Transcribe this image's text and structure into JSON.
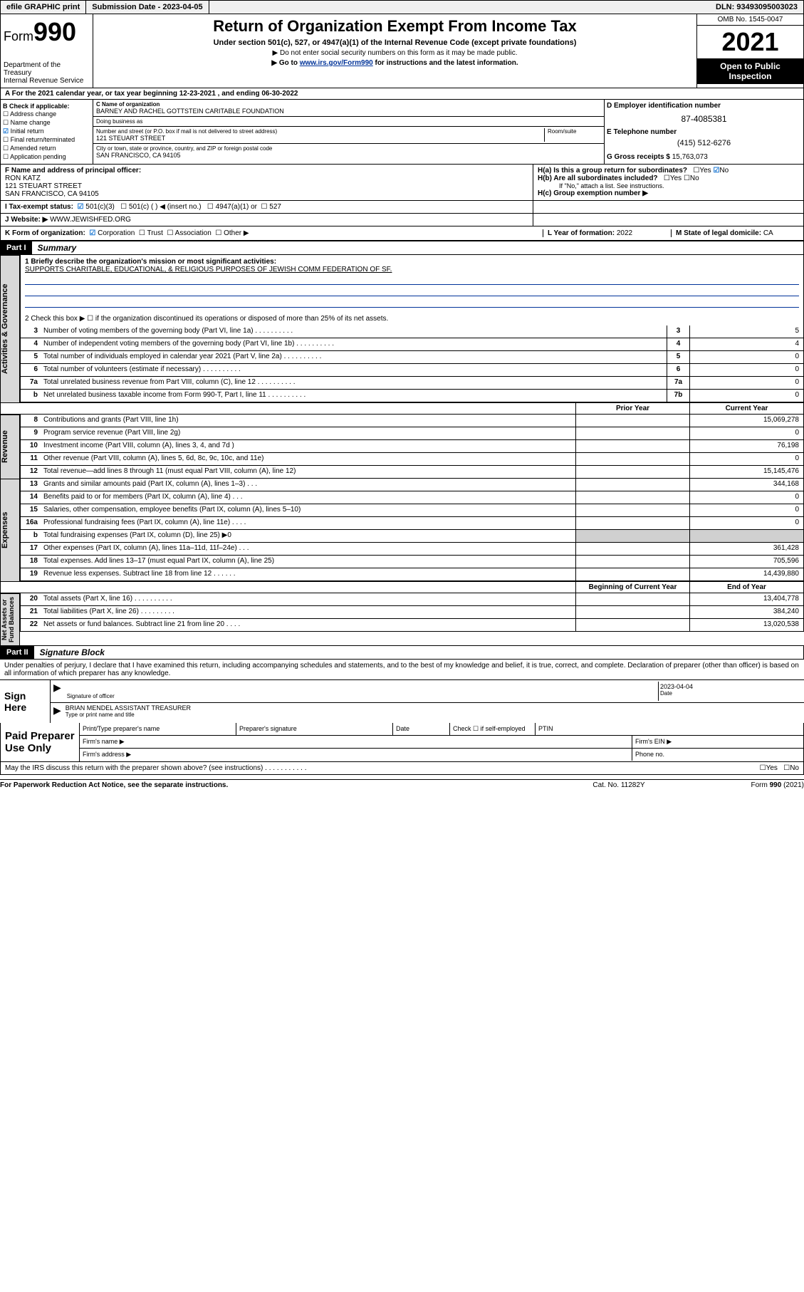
{
  "topbar": {
    "efile": "efile GRAPHIC print",
    "subdate_label": "Submission Date - ",
    "subdate": "2023-04-05",
    "dln_label": "DLN: ",
    "dln": "93493095003023"
  },
  "header": {
    "form_prefix": "Form",
    "form_num": "990",
    "title": "Return of Organization Exempt From Income Tax",
    "subtitle": "Under section 501(c), 527, or 4947(a)(1) of the Internal Revenue Code (except private foundations)",
    "note1": "▶ Do not enter social security numbers on this form as it may be made public.",
    "note2_pre": "▶ Go to ",
    "note2_link": "www.irs.gov/Form990",
    "note2_post": " for instructions and the latest information.",
    "dept1": "Department of the Treasury",
    "dept2": "Internal Revenue Service",
    "omb": "OMB No. 1545-0047",
    "year": "2021",
    "openpub1": "Open to Public",
    "openpub2": "Inspection"
  },
  "row_a": {
    "text_pre": "A For the 2021 calendar year, or tax year beginning ",
    "begin": "12-23-2021",
    "mid": " , and ending ",
    "end": "06-30-2022"
  },
  "col_b": {
    "header": "B Check if applicable:",
    "items": [
      "Address change",
      "Name change",
      "Initial return",
      "Final return/terminated",
      "Amended return",
      "Application pending"
    ],
    "checked_idx": 2
  },
  "col_c": {
    "c_label": "C Name of organization",
    "c_name": "BARNEY AND RACHEL GOTTSTEIN CARITABLE FOUNDATION",
    "dba_label": "Doing business as",
    "dba": "",
    "addr_label": "Number and street (or P.O. box if mail is not delivered to street address)",
    "room_label": "Room/suite",
    "addr": "121 STEUART STREET",
    "city_label": "City or town, state or province, country, and ZIP or foreign postal code",
    "city": "SAN FRANCISCO, CA  94105"
  },
  "col_d": {
    "d_label": "D Employer identification number",
    "ein": "87-4085381",
    "e_label": "E Telephone number",
    "phone": "(415) 512-6276",
    "g_label": "G Gross receipts $ ",
    "gross": "15,763,073"
  },
  "row_f": {
    "f_label": "F Name and address of principal officer:",
    "name": "RON KATZ",
    "addr1": "121 STEUART STREET",
    "addr2": "SAN FRANCISCO, CA  94105"
  },
  "row_h": {
    "ha": "H(a)  Is this a group return for subordinates?",
    "ha_yes": "Yes",
    "ha_no": "No",
    "hb": "H(b)  Are all subordinates included?",
    "hb_note": "If \"No,\" attach a list. See instructions.",
    "hc": "H(c)  Group exemption number ▶"
  },
  "row_i": {
    "label": "I  Tax-exempt status:",
    "o1": "501(c)(3)",
    "o2": "501(c) (   ) ◀ (insert no.)",
    "o3": "4947(a)(1) or",
    "o4": "527"
  },
  "row_j": {
    "label": "J  Website: ▶ ",
    "url": "WWW.JEWISHFED.ORG"
  },
  "row_k": {
    "label": "K Form of organization:",
    "o1": "Corporation",
    "o2": "Trust",
    "o3": "Association",
    "o4": "Other ▶",
    "l_label": "L Year of formation: ",
    "l_val": "2022",
    "m_label": "M State of legal domicile: ",
    "m_val": "CA"
  },
  "part1": {
    "hdr": "Part I",
    "title": "Summary",
    "l1a": "1  Briefly describe the organization's mission or most significant activities:",
    "l1b": "SUPPORTS CHARITABLE, EDUCATIONAL, & RELIGIOUS PURPOSES OF JEWISH COMM FEDERATION OF SF.",
    "l2": "2  Check this box ▶ ☐  if the organization discontinued its operations or disposed of more than 25% of its net assets.",
    "lines_gov": [
      {
        "n": "3",
        "t": "Number of voting members of the governing body (Part VI, line 1a)",
        "b": "3",
        "v": "5"
      },
      {
        "n": "4",
        "t": "Number of independent voting members of the governing body (Part VI, line 1b)",
        "b": "4",
        "v": "4"
      },
      {
        "n": "5",
        "t": "Total number of individuals employed in calendar year 2021 (Part V, line 2a)",
        "b": "5",
        "v": "0"
      },
      {
        "n": "6",
        "t": "Total number of volunteers (estimate if necessary)",
        "b": "6",
        "v": "0"
      },
      {
        "n": "7a",
        "t": "Total unrelated business revenue from Part VIII, column (C), line 12",
        "b": "7a",
        "v": "0"
      },
      {
        "n": "b",
        "t": "Net unrelated business taxable income from Form 990-T, Part I, line 11",
        "b": "7b",
        "v": "0"
      }
    ],
    "py": "Prior Year",
    "cy": "Current Year",
    "lines_rev": [
      {
        "n": "8",
        "t": "Contributions and grants (Part VIII, line 1h)",
        "py": "",
        "cy": "15,069,278"
      },
      {
        "n": "9",
        "t": "Program service revenue (Part VIII, line 2g)",
        "py": "",
        "cy": "0"
      },
      {
        "n": "10",
        "t": "Investment income (Part VIII, column (A), lines 3, 4, and 7d )",
        "py": "",
        "cy": "76,198"
      },
      {
        "n": "11",
        "t": "Other revenue (Part VIII, column (A), lines 5, 6d, 8c, 9c, 10c, and 11e)",
        "py": "",
        "cy": "0"
      },
      {
        "n": "12",
        "t": "Total revenue—add lines 8 through 11 (must equal Part VIII, column (A), line 12)",
        "py": "",
        "cy": "15,145,476"
      }
    ],
    "lines_exp": [
      {
        "n": "13",
        "t": "Grants and similar amounts paid (Part IX, column (A), lines 1–3)  .   .   .",
        "py": "",
        "cy": "344,168"
      },
      {
        "n": "14",
        "t": "Benefits paid to or for members (Part IX, column (A), line 4)  .   .   .",
        "py": "",
        "cy": "0"
      },
      {
        "n": "15",
        "t": "Salaries, other compensation, employee benefits (Part IX, column (A), lines 5–10)",
        "py": "",
        "cy": "0"
      },
      {
        "n": "16a",
        "t": "Professional fundraising fees (Part IX, column (A), line 11e)  .   .   .   .",
        "py": "",
        "cy": "0"
      },
      {
        "n": "b",
        "t": "Total fundraising expenses (Part IX, column (D), line 25) ▶0",
        "py": "shade",
        "cy": "shade"
      },
      {
        "n": "17",
        "t": "Other expenses (Part IX, column (A), lines 11a–11d, 11f–24e)  .   .   .",
        "py": "",
        "cy": "361,428"
      },
      {
        "n": "18",
        "t": "Total expenses. Add lines 13–17 (must equal Part IX, column (A), line 25)",
        "py": "",
        "cy": "705,596"
      },
      {
        "n": "19",
        "t": "Revenue less expenses. Subtract line 18 from line 12  .   .   .   .   .   .",
        "py": "",
        "cy": "14,439,880"
      }
    ],
    "boy": "Beginning of Current Year",
    "eoy": "End of Year",
    "lines_net": [
      {
        "n": "20",
        "t": "Total assets (Part X, line 16)  .   .   .   .   .   .   .   .   .   .",
        "py": "",
        "cy": "13,404,778"
      },
      {
        "n": "21",
        "t": "Total liabilities (Part X, line 26)  .   .   .   .   .   .   .   .   .",
        "py": "",
        "cy": "384,240"
      },
      {
        "n": "22",
        "t": "Net assets or fund balances. Subtract line 21 from line 20  .   .   .   .",
        "py": "",
        "cy": "13,020,538"
      }
    ]
  },
  "part2": {
    "hdr": "Part II",
    "title": "Signature Block",
    "decl": "Under penalties of perjury, I declare that I have examined this return, including accompanying schedules and statements, and to the best of my knowledge and belief, it is true, correct, and complete. Declaration of preparer (other than officer) is based on all information of which preparer has any knowledge.",
    "sign_here": "Sign Here",
    "sig_label": "Signature of officer",
    "date_label": "Date",
    "sig_date": "2023-04-04",
    "name_label": "Type or print name and title",
    "name": "BRIAN MENDEL ASSISTANT TREASURER",
    "paid": "Paid Preparer Use Only",
    "p_name": "Print/Type preparer's name",
    "p_sig": "Preparer's signature",
    "p_date": "Date",
    "p_check": "Check ☐ if self-employed",
    "p_ptin": "PTIN",
    "p_firm": "Firm's name   ▶",
    "p_ein": "Firm's EIN ▶",
    "p_addr": "Firm's address ▶",
    "p_phone": "Phone no.",
    "discuss": "May the IRS discuss this return with the preparer shown above? (see instructions)  .   .   .   .   .   .   .   .   .   .   .",
    "d_yes": "Yes",
    "d_no": "No"
  },
  "footer": {
    "l": "For Paperwork Reduction Act Notice, see the separate instructions.",
    "c": "Cat. No. 11282Y",
    "r": "Form 990 (2021)"
  }
}
